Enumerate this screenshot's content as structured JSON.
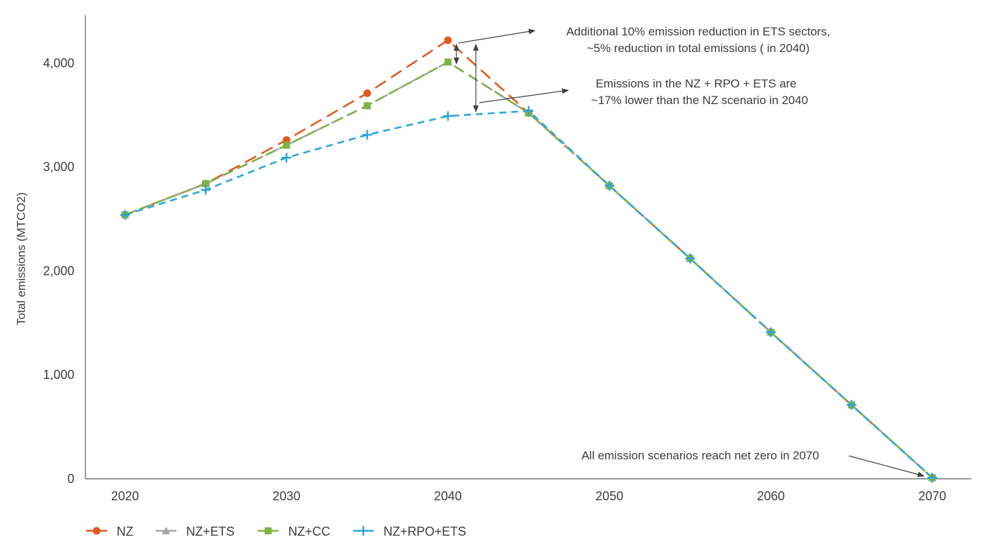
{
  "chart_data": {
    "type": "line",
    "ylabel": "Total emissions (MTCO2)",
    "xlabel": "",
    "x_ticks": [
      "2020",
      "2030",
      "2040",
      "2050",
      "2060",
      "2070"
    ],
    "y_ticks": [
      "0",
      "1,000",
      "2,000",
      "3,000",
      "4,000"
    ],
    "xlim": [
      2020,
      2070
    ],
    "ylim": [
      0,
      4400
    ],
    "grid": false,
    "legend_position": "bottom",
    "x": [
      2020,
      2025,
      2030,
      2035,
      2040,
      2045,
      2050,
      2055,
      2060,
      2065,
      2070
    ],
    "series": [
      {
        "name": "NZ",
        "color": "#e15a1f",
        "marker": "circle",
        "values": [
          2540,
          2840,
          3260,
          3710,
          4220,
          3520,
          2820,
          2120,
          1410,
          710,
          10
        ]
      },
      {
        "name": "NZ+ETS",
        "color": "#a6a6a6",
        "marker": "triangle",
        "values": [
          2540,
          2840,
          3210,
          3590,
          4010,
          3520,
          2820,
          2120,
          1410,
          710,
          10
        ]
      },
      {
        "name": "NZ+CC",
        "color": "#7cb342",
        "marker": "square",
        "values": [
          2540,
          2840,
          3210,
          3590,
          4010,
          3520,
          2820,
          2120,
          1410,
          710,
          10
        ]
      },
      {
        "name": "NZ+RPO+ETS",
        "color": "#2aa7d9",
        "marker": "plus",
        "values": [
          2540,
          2780,
          3090,
          3310,
          3490,
          3540,
          2820,
          2120,
          1410,
          710,
          10
        ]
      }
    ],
    "annotations": [
      {
        "id": "ets-reduction",
        "lines": [
          "Additional 10% emission reduction in ETS sectors,",
          "~5% reduction in total emissions ( in 2040)"
        ]
      },
      {
        "id": "rpo-reduction",
        "lines": [
          "Emissions in the NZ + RPO + ETS are",
          "~17% lower than the NZ scenario in 2040"
        ]
      },
      {
        "id": "net-zero",
        "lines": [
          "All emission scenarios reach net zero in 2070"
        ]
      }
    ]
  }
}
